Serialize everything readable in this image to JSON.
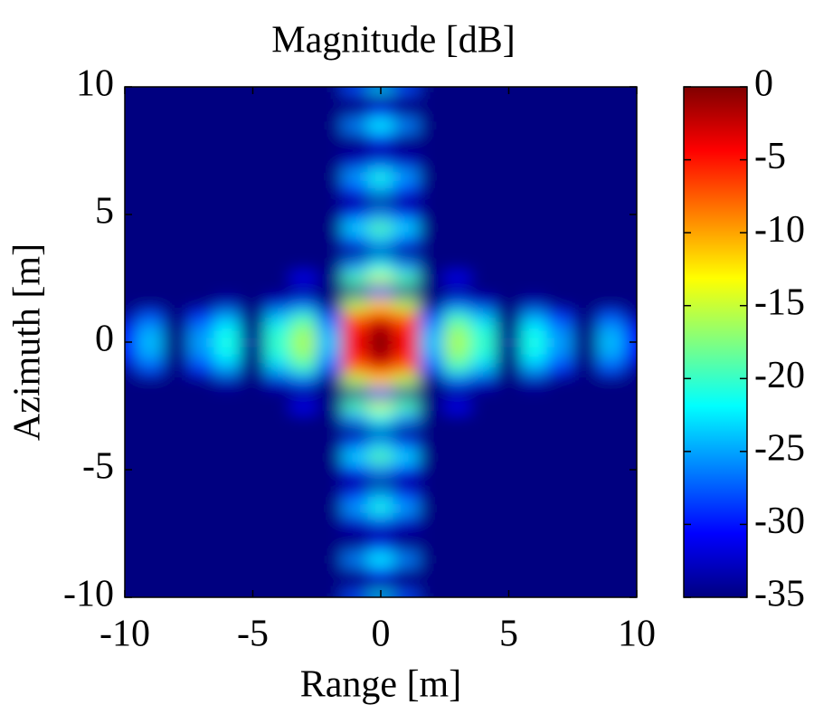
{
  "chart_data": {
    "type": "heatmap",
    "title": "Magnitude [dB]",
    "xlabel": "Range [m]",
    "ylabel": "Azimuth [m]",
    "xlim": [
      -10,
      10
    ],
    "ylim": [
      -10,
      10
    ],
    "xticks": [
      -10,
      -5,
      0,
      5,
      10
    ],
    "yticks": [
      -10,
      -5,
      0,
      5,
      10
    ],
    "clim": [
      -35,
      0
    ],
    "cticks": [
      0,
      -5,
      -10,
      -15,
      -20,
      -25,
      -30,
      -35
    ],
    "colormap": "jet",
    "x": [
      -10,
      -9,
      -8,
      -7,
      -6,
      -5,
      -4,
      -3,
      -2,
      -1,
      0,
      1,
      2,
      3,
      4,
      5,
      6,
      7,
      8,
      9,
      10
    ],
    "y": [
      -10,
      -9.5,
      -9,
      -8.5,
      -8,
      -7.5,
      -7,
      -6.5,
      -6,
      -5.5,
      -5,
      -4.5,
      -4,
      -3.5,
      -3,
      -2.5,
      -2,
      -1.5,
      -1,
      -0.5,
      0,
      0.5,
      1,
      1.5,
      2,
      2.5,
      3,
      3.5,
      4,
      4.5,
      5,
      5.5,
      6,
      6.5,
      7,
      7.5,
      8,
      8.5,
      9,
      9.5,
      10
    ],
    "z": [
      [
        -35,
        -35,
        -35,
        -35,
        -35,
        -35,
        -35,
        -35,
        -35,
        -28,
        -24,
        -28,
        -35,
        -35,
        -35,
        -35,
        -35,
        -35,
        -35,
        -35,
        -35
      ],
      [
        -35,
        -35,
        -35,
        -35,
        -35,
        -35,
        -35,
        -35,
        -35,
        -35,
        -35,
        -35,
        -35,
        -35,
        -35,
        -35,
        -35,
        -35,
        -35,
        -35,
        -35
      ],
      [
        -35,
        -35,
        -35,
        -35,
        -35,
        -35,
        -35,
        -35,
        -35,
        -34,
        -30,
        -34,
        -35,
        -35,
        -35,
        -35,
        -35,
        -35,
        -35,
        -35,
        -35
      ],
      [
        -35,
        -35,
        -35,
        -35,
        -35,
        -35,
        -35,
        -35,
        -35,
        -26,
        -22,
        -26,
        -35,
        -35,
        -35,
        -35,
        -35,
        -35,
        -35,
        -35,
        -35
      ],
      [
        -35,
        -35,
        -35,
        -35,
        -35,
        -35,
        -35,
        -35,
        -35,
        -34,
        -30,
        -34,
        -35,
        -35,
        -35,
        -35,
        -35,
        -35,
        -35,
        -35,
        -35
      ],
      [
        -35,
        -35,
        -35,
        -35,
        -35,
        -35,
        -35,
        -35,
        -35,
        -35,
        -35,
        -35,
        -35,
        -35,
        -35,
        -35,
        -35,
        -35,
        -35,
        -35,
        -35
      ],
      [
        -35,
        -35,
        -35,
        -35,
        -35,
        -35,
        -35,
        -35,
        -35,
        -32,
        -28,
        -32,
        -35,
        -35,
        -35,
        -35,
        -35,
        -35,
        -35,
        -35,
        -35
      ],
      [
        -35,
        -35,
        -35,
        -35,
        -35,
        -35,
        -35,
        -35,
        -35,
        -25,
        -21,
        -25,
        -35,
        -35,
        -35,
        -35,
        -35,
        -35,
        -35,
        -35,
        -35
      ],
      [
        -35,
        -35,
        -35,
        -35,
        -35,
        -35,
        -35,
        -35,
        -35,
        -29,
        -25,
        -29,
        -35,
        -35,
        -35,
        -35,
        -35,
        -35,
        -35,
        -35,
        -35
      ],
      [
        -35,
        -35,
        -35,
        -35,
        -35,
        -35,
        -35,
        -35,
        -35,
        -35,
        -35,
        -35,
        -35,
        -35,
        -35,
        -35,
        -35,
        -35,
        -35,
        -35,
        -35
      ],
      [
        -35,
        -35,
        -35,
        -35,
        -35,
        -35,
        -35,
        -35,
        -35,
        -30,
        -26,
        -30,
        -35,
        -35,
        -35,
        -35,
        -35,
        -35,
        -35,
        -35,
        -35
      ],
      [
        -35,
        -35,
        -35,
        -35,
        -35,
        -35,
        -35,
        -35,
        -35,
        -23,
        -19,
        -23,
        -35,
        -35,
        -35,
        -35,
        -35,
        -35,
        -35,
        -35,
        -35
      ],
      [
        -35,
        -35,
        -35,
        -35,
        -35,
        -35,
        -35,
        -35,
        -35,
        -28,
        -24,
        -28,
        -35,
        -35,
        -35,
        -35,
        -35,
        -35,
        -35,
        -35,
        -35
      ],
      [
        -35,
        -35,
        -35,
        -35,
        -35,
        -35,
        -35,
        -35,
        -35,
        -35,
        -33,
        -35,
        -35,
        -35,
        -35,
        -35,
        -35,
        -35,
        -35,
        -35,
        -35
      ],
      [
        -35,
        -35,
        -35,
        -35,
        -35,
        -35,
        -35,
        -35,
        -35,
        -26,
        -22,
        -26,
        -35,
        -35,
        -35,
        -35,
        -35,
        -35,
        -35,
        -35,
        -35
      ],
      [
        -35,
        -35,
        -35,
        -35,
        -35,
        -35,
        -35,
        -31,
        -35,
        -19,
        -15,
        -19,
        -35,
        -31,
        -35,
        -35,
        -35,
        -35,
        -35,
        -35,
        -35
      ],
      [
        -35,
        -35,
        -35,
        -35,
        -35,
        -35,
        -35,
        -35,
        -35,
        -34,
        -30,
        -34,
        -35,
        -35,
        -35,
        -35,
        -35,
        -35,
        -35,
        -35,
        -35
      ],
      [
        -35,
        -35,
        -35,
        -35,
        -33,
        -35,
        -32,
        -28,
        -35,
        -16,
        -12,
        -16,
        -35,
        -28,
        -32,
        -35,
        -33,
        -35,
        -35,
        -35,
        -35
      ],
      [
        -34,
        -28,
        -35,
        -29,
        -25,
        -35,
        -24,
        -20,
        -28,
        -8,
        -4,
        -8,
        -28,
        -20,
        -24,
        -35,
        -25,
        -29,
        -35,
        -28,
        -34
      ],
      [
        -31,
        -25,
        -35,
        -26,
        -22,
        -35,
        -21,
        -17,
        -25,
        -5,
        -1,
        -5,
        -25,
        -17,
        -21,
        -35,
        -22,
        -26,
        -35,
        -25,
        -31
      ],
      [
        -30,
        -24,
        -35,
        -25,
        -21,
        -34,
        -20,
        -16,
        -24,
        -4,
        0,
        -4,
        -24,
        -16,
        -20,
        -34,
        -21,
        -25,
        -35,
        -24,
        -30
      ],
      [
        -31,
        -25,
        -35,
        -26,
        -22,
        -35,
        -21,
        -17,
        -25,
        -5,
        -1,
        -5,
        -25,
        -17,
        -21,
        -35,
        -22,
        -26,
        -35,
        -25,
        -31
      ],
      [
        -34,
        -28,
        -35,
        -29,
        -25,
        -35,
        -24,
        -20,
        -28,
        -8,
        -4,
        -8,
        -28,
        -20,
        -24,
        -35,
        -25,
        -29,
        -35,
        -28,
        -34
      ],
      [
        -35,
        -35,
        -35,
        -35,
        -33,
        -35,
        -32,
        -28,
        -35,
        -16,
        -12,
        -16,
        -35,
        -28,
        -32,
        -35,
        -33,
        -35,
        -35,
        -35,
        -35
      ],
      [
        -35,
        -35,
        -35,
        -35,
        -35,
        -35,
        -35,
        -35,
        -35,
        -34,
        -30,
        -34,
        -35,
        -35,
        -35,
        -35,
        -35,
        -35,
        -35,
        -35,
        -35
      ],
      [
        -35,
        -35,
        -35,
        -35,
        -35,
        -35,
        -35,
        -31,
        -35,
        -19,
        -15,
        -19,
        -35,
        -31,
        -35,
        -35,
        -35,
        -35,
        -35,
        -35,
        -35
      ],
      [
        -35,
        -35,
        -35,
        -35,
        -35,
        -35,
        -35,
        -35,
        -35,
        -26,
        -22,
        -26,
        -35,
        -35,
        -35,
        -35,
        -35,
        -35,
        -35,
        -35,
        -35
      ],
      [
        -35,
        -35,
        -35,
        -35,
        -35,
        -35,
        -35,
        -35,
        -35,
        -35,
        -33,
        -35,
        -35,
        -35,
        -35,
        -35,
        -35,
        -35,
        -35,
        -35,
        -35
      ],
      [
        -35,
        -35,
        -35,
        -35,
        -35,
        -35,
        -35,
        -35,
        -35,
        -28,
        -24,
        -28,
        -35,
        -35,
        -35,
        -35,
        -35,
        -35,
        -35,
        -35,
        -35
      ],
      [
        -35,
        -35,
        -35,
        -35,
        -35,
        -35,
        -35,
        -35,
        -35,
        -23,
        -19,
        -23,
        -35,
        -35,
        -35,
        -35,
        -35,
        -35,
        -35,
        -35,
        -35
      ],
      [
        -35,
        -35,
        -35,
        -35,
        -35,
        -35,
        -35,
        -35,
        -35,
        -30,
        -26,
        -30,
        -35,
        -35,
        -35,
        -35,
        -35,
        -35,
        -35,
        -35,
        -35
      ],
      [
        -35,
        -35,
        -35,
        -35,
        -35,
        -35,
        -35,
        -35,
        -35,
        -35,
        -35,
        -35,
        -35,
        -35,
        -35,
        -35,
        -35,
        -35,
        -35,
        -35,
        -35
      ],
      [
        -35,
        -35,
        -35,
        -35,
        -35,
        -35,
        -35,
        -35,
        -35,
        -29,
        -25,
        -29,
        -35,
        -35,
        -35,
        -35,
        -35,
        -35,
        -35,
        -35,
        -35
      ],
      [
        -35,
        -35,
        -35,
        -35,
        -35,
        -35,
        -35,
        -35,
        -35,
        -25,
        -21,
        -25,
        -35,
        -35,
        -35,
        -35,
        -35,
        -35,
        -35,
        -35,
        -35
      ],
      [
        -35,
        -35,
        -35,
        -35,
        -35,
        -35,
        -35,
        -35,
        -35,
        -32,
        -28,
        -32,
        -35,
        -35,
        -35,
        -35,
        -35,
        -35,
        -35,
        -35,
        -35
      ],
      [
        -35,
        -35,
        -35,
        -35,
        -35,
        -35,
        -35,
        -35,
        -35,
        -35,
        -35,
        -35,
        -35,
        -35,
        -35,
        -35,
        -35,
        -35,
        -35,
        -35,
        -35
      ],
      [
        -35,
        -35,
        -35,
        -35,
        -35,
        -35,
        -35,
        -35,
        -35,
        -34,
        -30,
        -34,
        -35,
        -35,
        -35,
        -35,
        -35,
        -35,
        -35,
        -35,
        -35
      ],
      [
        -35,
        -35,
        -35,
        -35,
        -35,
        -35,
        -35,
        -35,
        -35,
        -26,
        -22,
        -26,
        -35,
        -35,
        -35,
        -35,
        -35,
        -35,
        -35,
        -35,
        -35
      ],
      [
        -35,
        -35,
        -35,
        -35,
        -35,
        -35,
        -35,
        -35,
        -35,
        -34,
        -30,
        -34,
        -35,
        -35,
        -35,
        -35,
        -35,
        -35,
        -35,
        -35,
        -35
      ],
      [
        -35,
        -35,
        -35,
        -35,
        -35,
        -35,
        -35,
        -35,
        -35,
        -35,
        -35,
        -35,
        -35,
        -35,
        -35,
        -35,
        -35,
        -35,
        -35,
        -35,
        -35
      ],
      [
        -35,
        -35,
        -35,
        -35,
        -35,
        -35,
        -35,
        -35,
        -35,
        -28,
        -24,
        -28,
        -35,
        -35,
        -35,
        -35,
        -35,
        -35,
        -35,
        -35,
        -35
      ]
    ]
  }
}
